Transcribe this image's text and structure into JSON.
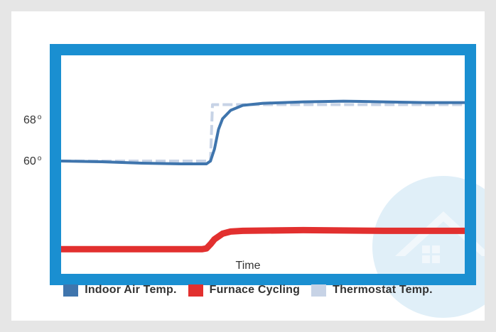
{
  "chart_data": {
    "type": "line",
    "xlabel": "Time",
    "yticks": [
      {
        "label": "68",
        "value": 68
      },
      {
        "label": "60",
        "value": 60
      }
    ],
    "degree_symbol": "o",
    "ylim": [
      44,
      75
    ],
    "xlim": [
      0,
      100
    ],
    "grid": false,
    "legend_position": "bottom",
    "series": [
      {
        "name": "Thermostat Temp.",
        "style": "dashed",
        "color": "#c7d3e6",
        "x": [
          0,
          37,
          37.5,
          100
        ],
        "y": [
          60,
          60,
          68,
          68
        ]
      },
      {
        "name": "Indoor Air Temp.",
        "style": "solid",
        "color": "#3f75ad",
        "x": [
          0,
          10,
          20,
          30,
          36,
          37,
          38,
          39,
          40,
          42,
          45,
          50,
          60,
          70,
          80,
          90,
          100
        ],
        "y": [
          60,
          59.9,
          59.7,
          59.6,
          59.6,
          60.0,
          61.7,
          64.5,
          66.0,
          67.2,
          67.9,
          68.2,
          68.4,
          68.5,
          68.4,
          68.3,
          68.3
        ]
      },
      {
        "name": "Furnace Cycling",
        "style": "solid",
        "color": "#e2302f",
        "x": [
          0,
          35,
          36,
          37,
          38,
          40,
          42,
          45,
          60,
          80,
          100
        ],
        "y": [
          47.5,
          47.5,
          47.6,
          48.2,
          48.9,
          49.7,
          50.0,
          50.1,
          50.2,
          50.1,
          50.1
        ]
      }
    ]
  }
}
